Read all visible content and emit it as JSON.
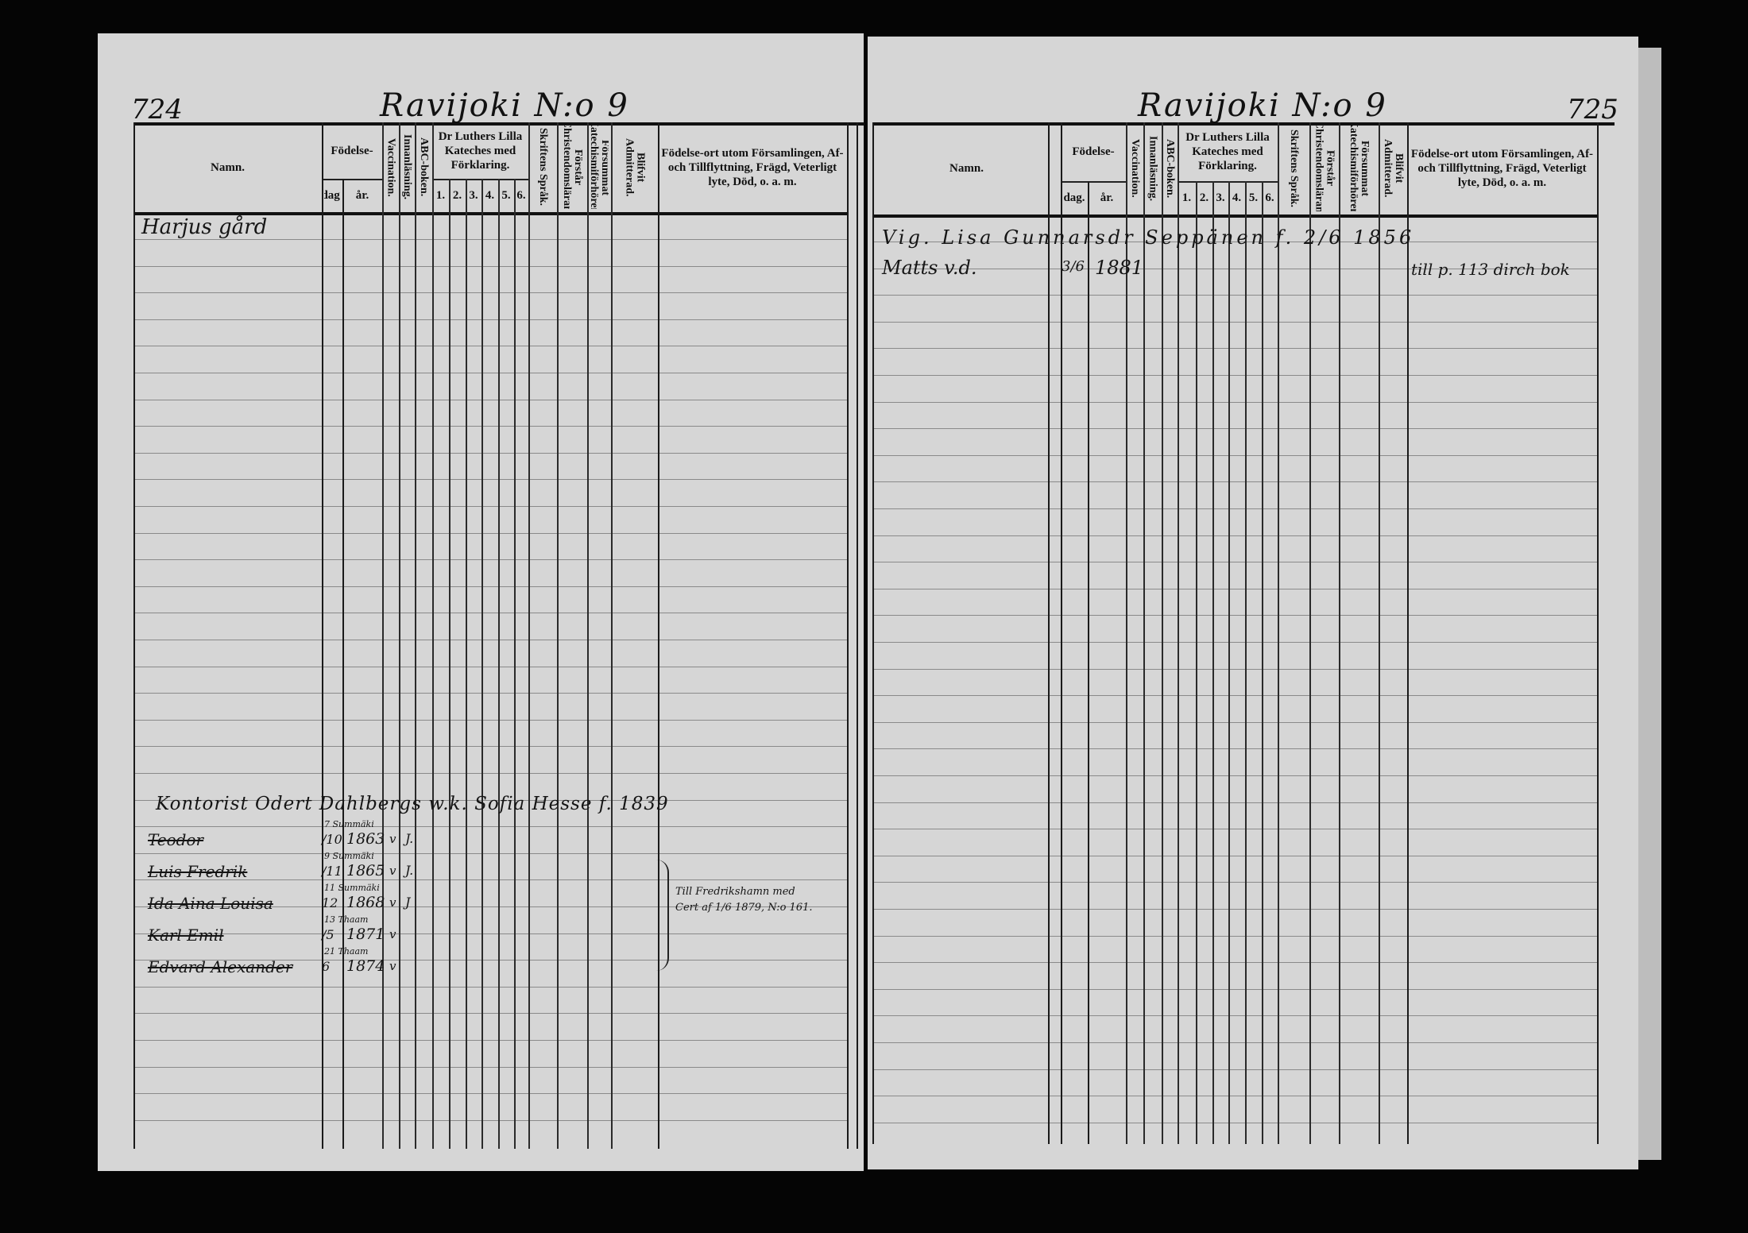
{
  "headers": {
    "namn": "Namn.",
    "fodelse": "Födelse-",
    "dag": "dag.",
    "ar": "år.",
    "vaccination": "Vaccination.",
    "innanlasning": "Innanläsning.",
    "abc": "ABC-boken.",
    "katekes": "Dr Luthers Lilla Kateches med Förklaring.",
    "kat_nums": [
      "1.",
      "2.",
      "3.",
      "4.",
      "5.",
      "6."
    ],
    "skriftens": "Skriftens Språk.",
    "forstar": "Förstår Christendomsläran.",
    "forsummat": "Försummat Katechismiförhören.",
    "blifvit": "Blifvit Admitterad.",
    "fodelseort": "Födelse-ort utom Församlingen, Af- och Tillflyttning, Frägd, Veterligt lyte, Död, o. a. m."
  },
  "left_page": {
    "page_number": "724",
    "title": "Ravijoki N:o 9",
    "household": "Harjus gård",
    "head": "Kontorist Odert Dahlbergs w.k. Sofia Hesse f. 1839",
    "children": [
      {
        "name": "Teodor",
        "place": "7 Summäki",
        "day": "/10",
        "year": "1863",
        "vacc": "v",
        "innan": "J."
      },
      {
        "name": "Luis Fredrik",
        "place": "9 Summäki",
        "day": "/11",
        "year": "1865",
        "vacc": "v",
        "innan": "J."
      },
      {
        "name": "Ida Aina Louisa",
        "place": "11 Summäki",
        "day": "12",
        "year": "1868",
        "vacc": "v",
        "innan": "J"
      },
      {
        "name": "Karl Emil",
        "place": "13 Thaam",
        "day": "/5",
        "year": "1871",
        "vacc": "v",
        "innan": ""
      },
      {
        "name": "Edvard Alexander",
        "place": "21 Thaam",
        "day": "6",
        "year": "1874",
        "vacc": "v",
        "innan": ""
      }
    ],
    "note": [
      "Till Fredrikshamn med",
      "Cert af 1/6 1879, N:o 161."
    ]
  },
  "right_page": {
    "page_number": "725",
    "title": "Ravijoki N:o 9",
    "entry1": "Vig. Lisa Gunnarsdr Seppänen f. 2/6 1856",
    "entry2_name": "Matts v.d.",
    "entry2_day": "3/6",
    "entry2_year": "1881",
    "entry2_note": "till p. 113 dirch bok"
  }
}
